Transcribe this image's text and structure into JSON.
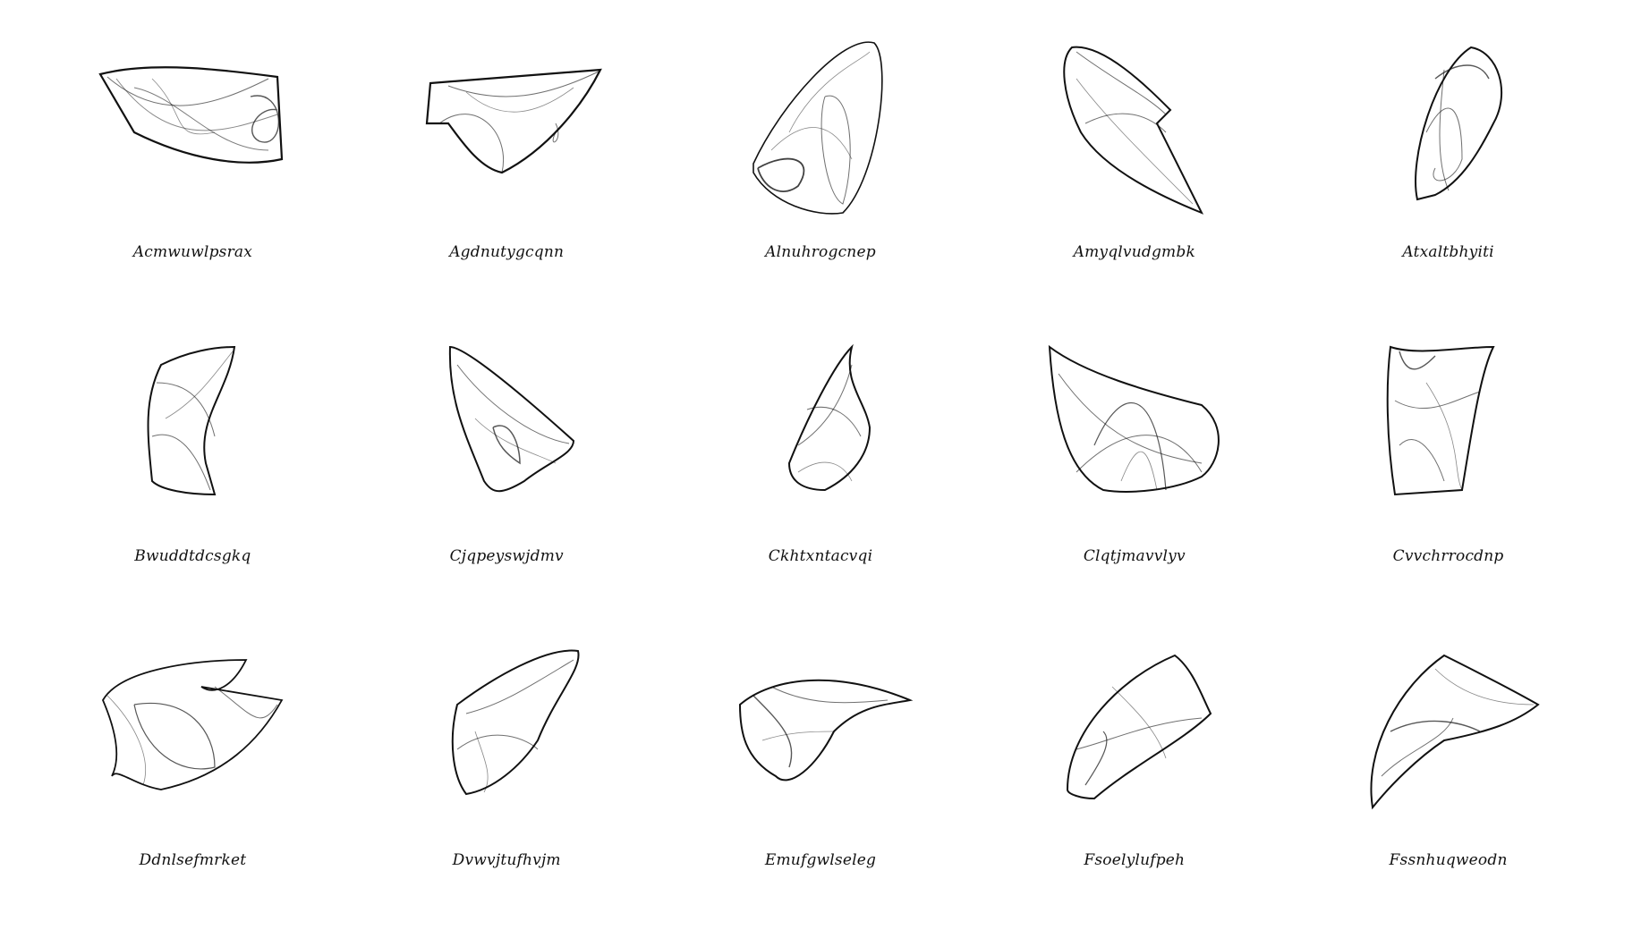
{
  "attractors": [
    {
      "name": "Acmwuwlpsrax"
    },
    {
      "name": "Agdnutygcqnn"
    },
    {
      "name": "Alnuhrogcnep"
    },
    {
      "name": "Amyqlvudgmbk"
    },
    {
      "name": "Atxaltbhyiti"
    },
    {
      "name": "Bwuddtdcsgkq"
    },
    {
      "name": "Cjqpeyswjdmv"
    },
    {
      "name": "Ckhtxntacvqi"
    },
    {
      "name": "Clqtjmavvlyv"
    },
    {
      "name": "Cvvchrrocdnp"
    },
    {
      "name": "Ddnlsefmrket"
    },
    {
      "name": "Dvwvjtufhvjm"
    },
    {
      "name": "Emufgwlseleg"
    },
    {
      "name": "Fsoelylufpeh"
    },
    {
      "name": "Fssnhuqweodn"
    }
  ]
}
